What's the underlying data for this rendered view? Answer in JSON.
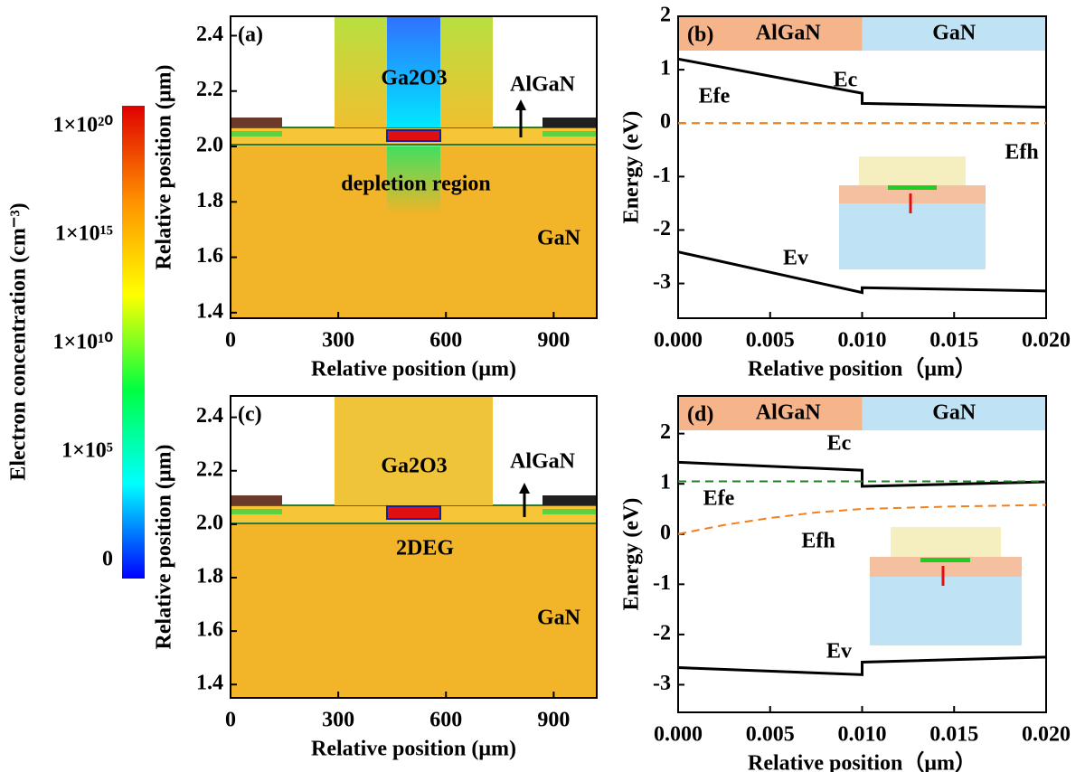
{
  "chart_data": [
    {
      "type": "colorbar",
      "title": "Electron concentration (cm⁻³)",
      "ticks": [
        {
          "value": 0,
          "label": "0"
        },
        {
          "value": 100000,
          "label": "1×10⁵"
        },
        {
          "value": 10000000000,
          "label": "1×10¹⁰"
        },
        {
          "value": 1000000000000000,
          "label": "1×10¹⁵"
        },
        {
          "value": 100000000000000000000,
          "label": "1×10²⁰"
        }
      ],
      "colors": [
        "#0000ff",
        "#00ffff",
        "#00ff40",
        "#ffff00",
        "#ff9000",
        "#e00000"
      ]
    },
    {
      "type": "contour",
      "panel_label": "(a)",
      "x_label": "Relative position (μm)",
      "y_label": "Relative position (μm)",
      "xlim": [
        0,
        1020
      ],
      "xticks": [
        0,
        300,
        600,
        900
      ],
      "ylim": [
        1.38,
        2.47
      ],
      "yticks": [
        1.4,
        1.6,
        1.8,
        {
          "value": 2,
          "label": "2.0"
        },
        2.2,
        2.4
      ],
      "annotations": [
        "Ga2O3",
        "AlGaN",
        "depletion region",
        "GaN"
      ]
    },
    {
      "type": "line",
      "panel_label": "(b)",
      "x_label": "Relative position（μm）",
      "y_label": "Energy (eV)",
      "regions": [
        "AlGaN",
        "GaN"
      ],
      "xlim": [
        0,
        0.02
      ],
      "xticks": [
        {
          "value": 0,
          "label": "0.000"
        },
        0.005,
        {
          "value": 0.01,
          "label": "0.010"
        },
        0.015,
        {
          "value": 0.02,
          "label": "0.020"
        }
      ],
      "ylim": [
        -3.65,
        2
      ],
      "yticks": [
        -3,
        -2,
        -1,
        0,
        1,
        2
      ],
      "series": [
        {
          "name": "Ec",
          "color": "#000000",
          "dash": false,
          "x": [
            0,
            0.01,
            0.01,
            0.02
          ],
          "values": [
            1.2,
            0.56,
            0.37,
            0.3
          ]
        },
        {
          "name": "Efe",
          "color": "#f08020",
          "dash": true,
          "x": [
            0,
            0.02
          ],
          "values": [
            0,
            0
          ]
        },
        {
          "name": "Efh",
          "color": "#f08020",
          "dash": true,
          "x": [
            0,
            0.02
          ],
          "values": [
            0,
            0
          ]
        },
        {
          "name": "Ev",
          "color": "#000000",
          "dash": false,
          "x": [
            0,
            0.01,
            0.01,
            0.02
          ],
          "values": [
            -2.41,
            -3.17,
            -3.08,
            -3.14
          ]
        }
      ]
    },
    {
      "type": "contour",
      "panel_label": "(c)",
      "x_label": "Relative position (μm)",
      "y_label": "Relative position (μm)",
      "xlim": [
        0,
        1020
      ],
      "xticks": [
        0,
        300,
        600,
        900
      ],
      "ylim": [
        1.35,
        2.48
      ],
      "yticks": [
        1.4,
        1.6,
        1.8,
        {
          "value": 2,
          "label": "2.0"
        },
        2.2,
        2.4
      ],
      "annotations": [
        "Ga2O3",
        "AlGaN",
        "2DEG",
        "GaN"
      ]
    },
    {
      "type": "line",
      "panel_label": "(d)",
      "x_label": "Relative position（μm）",
      "y_label": "Energy (eV)",
      "regions": [
        "AlGaN",
        "GaN"
      ],
      "xlim": [
        0,
        0.02
      ],
      "xticks": [
        {
          "value": 0,
          "label": "0.000"
        },
        0.005,
        {
          "value": 0.01,
          "label": "0.010"
        },
        0.015,
        {
          "value": 0.02,
          "label": "0.020"
        }
      ],
      "ylim": [
        -3.55,
        2.75
      ],
      "yticks": [
        -3,
        -2,
        -1,
        0,
        1,
        2
      ],
      "series": [
        {
          "name": "Ec",
          "color": "#000000",
          "dash": false,
          "x": [
            0,
            0.01,
            0.01,
            0.02
          ],
          "values": [
            1.43,
            1.27,
            0.95,
            1.04
          ]
        },
        {
          "name": "Efe",
          "color": "#208020",
          "dash": true,
          "x": [
            0,
            0.02
          ],
          "values": [
            1.05,
            1.05
          ]
        },
        {
          "name": "Efh",
          "color": "#f08020",
          "dash": true,
          "x": [
            0,
            0.0025,
            0.005,
            0.0075,
            0.01,
            0.015,
            0.02
          ],
          "values": [
            0,
            0.18,
            0.32,
            0.43,
            0.5,
            0.55,
            0.58
          ]
        },
        {
          "name": "Ev",
          "color": "#000000",
          "dash": false,
          "x": [
            0,
            0.01,
            0.01,
            0.02
          ],
          "values": [
            -2.66,
            -2.8,
            -2.55,
            -2.45
          ]
        }
      ]
    }
  ]
}
